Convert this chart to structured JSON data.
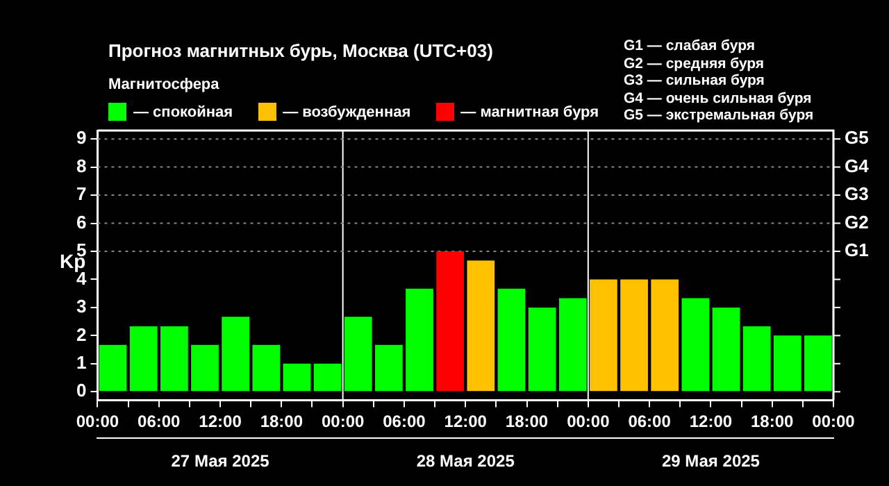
{
  "chart_data": {
    "type": "bar",
    "title": "Прогноз магнитных бурь, Москва (UTC+03)",
    "ylabel": "Kp",
    "legend_title": "Магнитосфера",
    "legend": "top left",
    "x": [
      "2025-05-27T01:30",
      "2025-05-27T04:30",
      "2025-05-27T07:30",
      "2025-05-27T10:30",
      "2025-05-27T13:30",
      "2025-05-27T16:30",
      "2025-05-27T19:30",
      "2025-05-27T22:30",
      "2025-05-28T01:30",
      "2025-05-28T04:30",
      "2025-05-28T07:30",
      "2025-05-28T10:30",
      "2025-05-28T13:30",
      "2025-05-28T16:30",
      "2025-05-28T19:30",
      "2025-05-28T22:30",
      "2025-05-29T01:30",
      "2025-05-29T04:30",
      "2025-05-29T07:30",
      "2025-05-29T10:30",
      "2025-05-29T13:30",
      "2025-05-29T16:30",
      "2025-05-29T19:30",
      "2025-05-29T22:30"
    ],
    "series": [
      {
        "name": "— спокойная",
        "color": "#00ff00",
        "values": [
          1.67,
          2.33,
          2.33,
          1.67,
          2.67,
          1.67,
          1,
          1,
          2.67,
          1.67,
          3.67,
          null,
          null,
          3.67,
          3,
          3.33,
          null,
          null,
          null,
          3.33,
          3,
          2.33,
          2,
          2
        ]
      },
      {
        "name": "— возбужденная",
        "color": "#ffc000",
        "values": [
          null,
          null,
          null,
          null,
          null,
          null,
          null,
          null,
          null,
          null,
          null,
          null,
          4.67,
          null,
          null,
          null,
          4,
          4,
          4,
          null,
          null,
          null,
          null,
          null
        ]
      },
      {
        "name": "— магнитная буря",
        "color": "#ff0000",
        "values": [
          null,
          null,
          null,
          null,
          null,
          null,
          null,
          null,
          null,
          null,
          null,
          5,
          null,
          null,
          null,
          null,
          null,
          null,
          null,
          null,
          null,
          null,
          null,
          null
        ]
      }
    ],
    "xlim": [
      "2025-05-27T00:00",
      "2025-05-30T00:00"
    ],
    "xticks": [
      {
        "value": "2025-05-27T00:00",
        "label": "00:00"
      },
      {
        "value": "2025-05-27T03:00",
        "label": null
      },
      {
        "value": "2025-05-27T06:00",
        "label": "06:00"
      },
      {
        "value": "2025-05-27T09:00",
        "label": null
      },
      {
        "value": "2025-05-27T12:00",
        "label": "12:00"
      },
      {
        "value": "2025-05-27T15:00",
        "label": null
      },
      {
        "value": "2025-05-27T18:00",
        "label": "18:00"
      },
      {
        "value": "2025-05-27T21:00",
        "label": null
      },
      {
        "value": "2025-05-28T00:00",
        "label": "00:00"
      },
      {
        "value": "2025-05-28T03:00",
        "label": null
      },
      {
        "value": "2025-05-28T06:00",
        "label": "06:00"
      },
      {
        "value": "2025-05-28T09:00",
        "label": null
      },
      {
        "value": "2025-05-28T12:00",
        "label": "12:00"
      },
      {
        "value": "2025-05-28T15:00",
        "label": null
      },
      {
        "value": "2025-05-28T18:00",
        "label": "18:00"
      },
      {
        "value": "2025-05-28T21:00",
        "label": null
      },
      {
        "value": "2025-05-29T00:00",
        "label": "00:00"
      },
      {
        "value": "2025-05-29T03:00",
        "label": null
      },
      {
        "value": "2025-05-29T06:00",
        "label": "06:00"
      },
      {
        "value": "2025-05-29T09:00",
        "label": null
      },
      {
        "value": "2025-05-29T12:00",
        "label": "12:00"
      },
      {
        "value": "2025-05-29T15:00",
        "label": null
      },
      {
        "value": "2025-05-29T18:00",
        "label": "18:00"
      },
      {
        "value": "2025-05-29T21:00",
        "label": null
      },
      {
        "value": "2025-05-30T00:00",
        "label": "00:00"
      }
    ],
    "x2lim": [
      "2025-05-27T00:00",
      "2025-05-30T00:00"
    ],
    "x2ticks": [
      {
        "value": "2025-05-27T12:00",
        "label": "27 Мая 2025"
      },
      {
        "value": "2025-05-28T12:00",
        "label": "28 Мая 2025"
      },
      {
        "value": "2025-05-29T12:00",
        "label": "29 Мая 2025"
      }
    ],
    "ylim": [
      -0.3,
      9.3
    ],
    "yticks": [
      0,
      1,
      2,
      3,
      4,
      5,
      6,
      7,
      8,
      9
    ],
    "ref_lines": [
      {
        "axis": "x",
        "value": "2025-05-28T00:00",
        "color": "#ffffff",
        "line_style": "solid"
      },
      {
        "axis": "x",
        "value": "2025-05-29T00:00",
        "color": "#ffffff",
        "line_style": "solid"
      },
      {
        "axis": "y",
        "value": 5,
        "label": "G1",
        "color": "#888888",
        "line_style": "dotted"
      },
      {
        "axis": "y",
        "value": 6,
        "label": "G2",
        "color": "#888888",
        "line_style": "dotted"
      },
      {
        "axis": "y",
        "value": 7,
        "label": "G3",
        "color": "#888888",
        "line_style": "dotted"
      },
      {
        "axis": "y",
        "value": 8,
        "label": "G4",
        "color": "#888888",
        "line_style": "dotted"
      },
      {
        "axis": "y",
        "value": 9,
        "label": "G5",
        "color": "#888888",
        "line_style": "dotted"
      }
    ],
    "annotations": [
      "G1 — слабая буря",
      "G2 — средняя буря",
      "G3 — сильная буря",
      "G4 — очень сильная буря",
      "G5 — экстремальная буря"
    ]
  }
}
